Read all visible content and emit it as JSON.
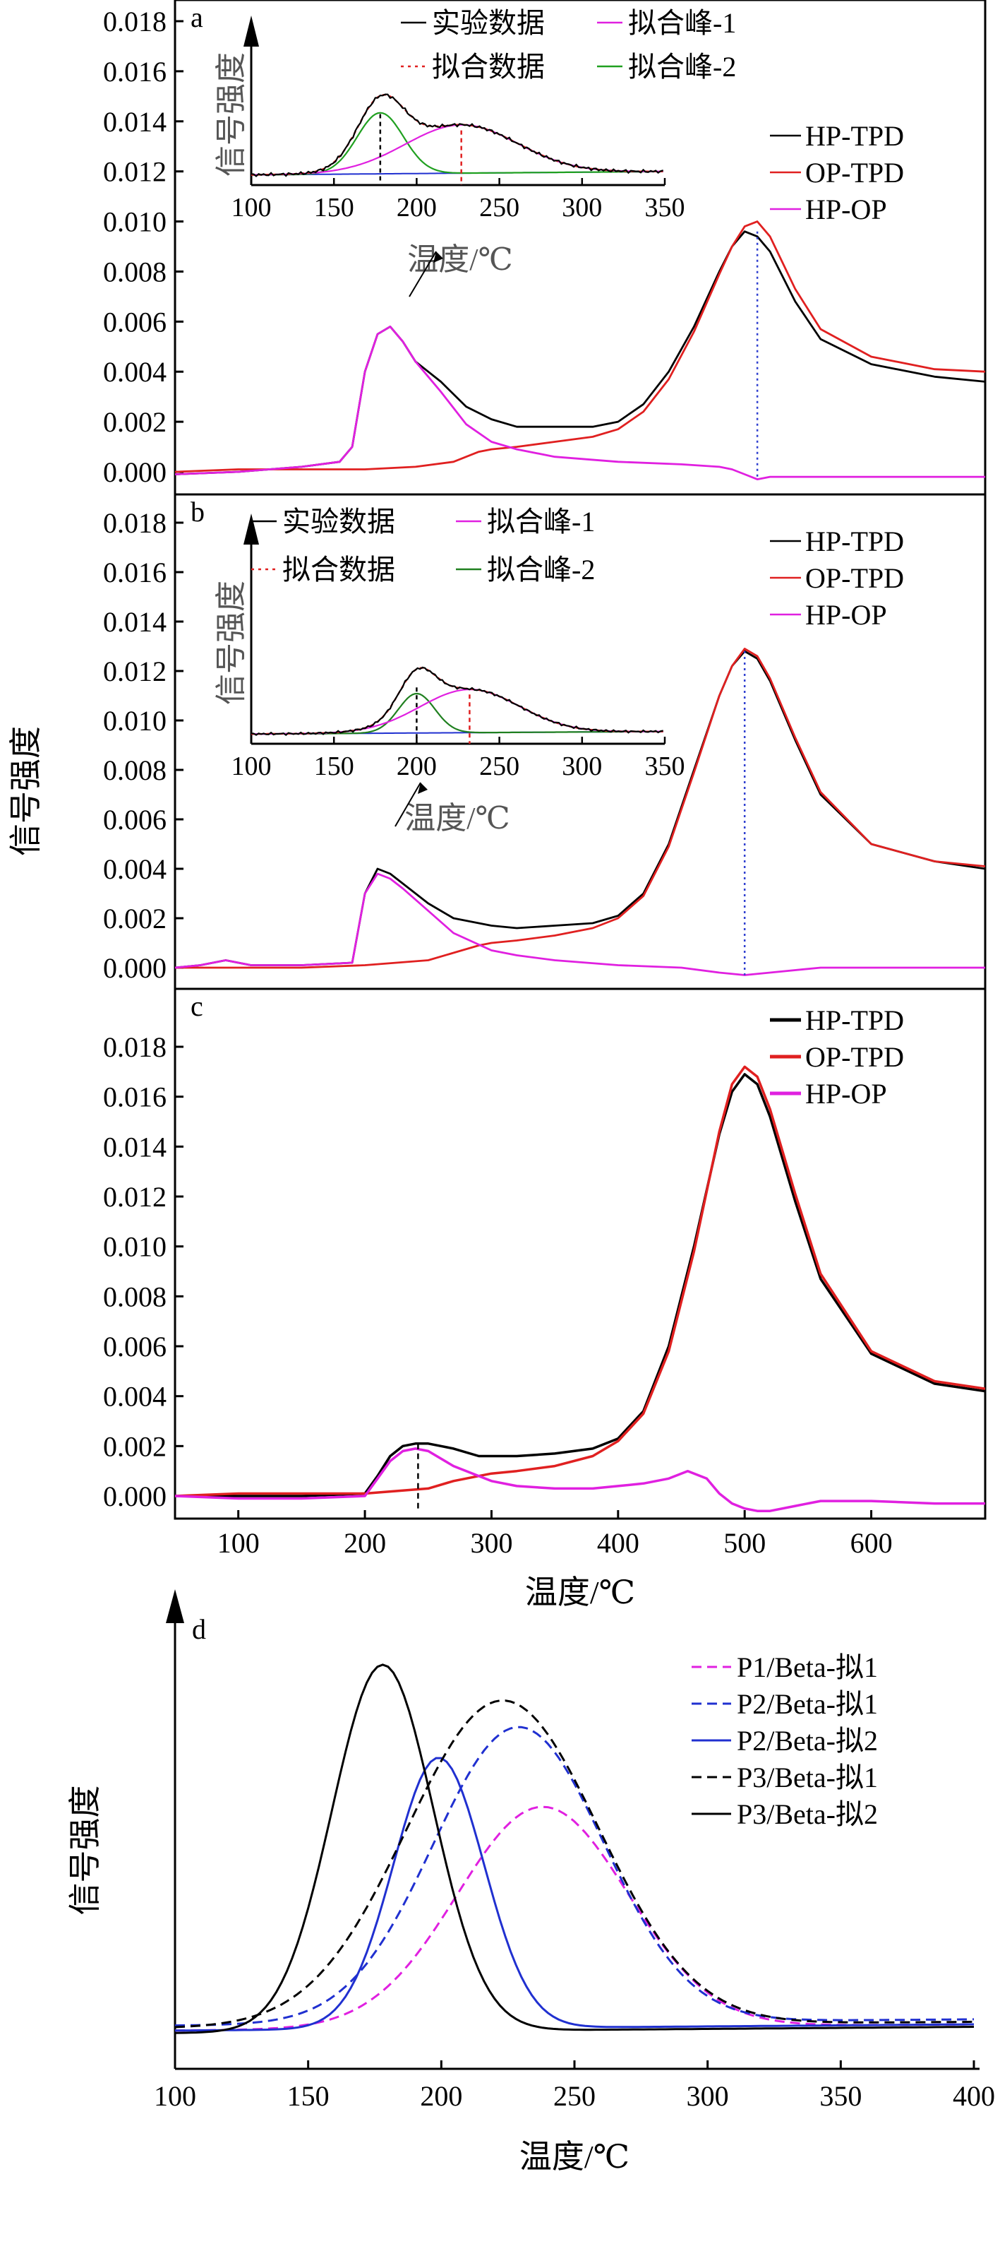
{
  "figure": {
    "ylabel": "信号强度",
    "xlabel": "温度/℃"
  },
  "chart_data": [
    {
      "panel": "a",
      "type": "line",
      "xlim": [
        50,
        690
      ],
      "ylim": [
        -0.001,
        0.018
      ],
      "yticks": [
        "0.018",
        "0.016",
        "0.014",
        "0.012",
        "0.010",
        "0.008",
        "0.006",
        "0.004",
        "0.002",
        "0.000"
      ],
      "series": [
        {
          "name": "HP-TPD",
          "color": "#000000",
          "x": [
            50,
            100,
            150,
            180,
            190,
            200,
            210,
            220,
            230,
            240,
            250,
            260,
            280,
            300,
            320,
            350,
            380,
            400,
            420,
            440,
            460,
            480,
            490,
            500,
            510,
            520,
            540,
            560,
            600,
            650,
            690
          ],
          "y": [
            -0.0001,
            0.0,
            0.0002,
            0.0004,
            0.001,
            0.004,
            0.0055,
            0.0058,
            0.0052,
            0.0044,
            0.004,
            0.0036,
            0.0026,
            0.0021,
            0.0018,
            0.0018,
            0.0018,
            0.002,
            0.0027,
            0.004,
            0.0058,
            0.008,
            0.009,
            0.0096,
            0.0094,
            0.0088,
            0.0068,
            0.0053,
            0.0043,
            0.0038,
            0.0036
          ]
        },
        {
          "name": "OP-TPD",
          "color": "#e02020",
          "x": [
            50,
            100,
            150,
            200,
            240,
            270,
            290,
            300,
            320,
            350,
            380,
            400,
            420,
            440,
            460,
            480,
            490,
            500,
            510,
            520,
            540,
            560,
            600,
            650,
            690
          ],
          "y": [
            0.0,
            0.0001,
            0.0001,
            0.0001,
            0.0002,
            0.0004,
            0.0008,
            0.0009,
            0.001,
            0.0012,
            0.0014,
            0.0017,
            0.0024,
            0.0037,
            0.0056,
            0.0079,
            0.009,
            0.0098,
            0.01,
            0.0094,
            0.0073,
            0.0057,
            0.0046,
            0.0041,
            0.004
          ]
        },
        {
          "name": "HP-OP",
          "color": "#e020e0",
          "x": [
            50,
            100,
            150,
            180,
            190,
            200,
            210,
            220,
            230,
            240,
            250,
            260,
            280,
            300,
            320,
            350,
            400,
            450,
            480,
            490,
            500,
            510,
            520,
            560,
            600,
            650,
            690
          ],
          "y": [
            -0.0001,
            0.0,
            0.0002,
            0.0004,
            0.001,
            0.004,
            0.0055,
            0.0058,
            0.0052,
            0.0044,
            0.0038,
            0.0032,
            0.0019,
            0.0012,
            0.0009,
            0.0006,
            0.0004,
            0.0003,
            0.0002,
            0.0001,
            -0.0001,
            -0.0003,
            -0.0002,
            -0.0002,
            -0.0002,
            -0.0002,
            -0.0002
          ]
        }
      ],
      "marker_x": 510,
      "inset": {
        "xlim": [
          100,
          350
        ],
        "xticks": [
          "100",
          "150",
          "200",
          "250",
          "300",
          "350"
        ],
        "ylabel": "信号强度",
        "xlabel": "温度/℃",
        "legend": [
          {
            "label": "实验数据",
            "color": "#000000",
            "dash": "solid"
          },
          {
            "label": "拟合峰-1",
            "color": "#e020e0",
            "dash": "solid"
          },
          {
            "label": "拟合数据",
            "color": "#e02020",
            "dash": "dotted"
          },
          {
            "label": "拟合峰-2",
            "color": "#20a020",
            "dash": "solid"
          }
        ],
        "peak1_center": 227,
        "peak2_center": 178
      }
    },
    {
      "panel": "b",
      "type": "line",
      "xlim": [
        50,
        690
      ],
      "ylim": [
        -0.001,
        0.018
      ],
      "yticks": [
        "0.018",
        "0.016",
        "0.014",
        "0.012",
        "0.010",
        "0.008",
        "0.006",
        "0.004",
        "0.002",
        "0.000"
      ],
      "series": [
        {
          "name": "HP-TPD",
          "color": "#000000",
          "x": [
            50,
            70,
            90,
            110,
            150,
            190,
            200,
            210,
            220,
            230,
            250,
            270,
            300,
            320,
            350,
            380,
            400,
            420,
            440,
            460,
            480,
            490,
            500,
            510,
            520,
            540,
            560,
            600,
            650,
            690
          ],
          "y": [
            0.0,
            0.0001,
            0.0003,
            0.0001,
            0.0001,
            0.0002,
            0.003,
            0.004,
            0.0038,
            0.0034,
            0.0026,
            0.002,
            0.0017,
            0.0016,
            0.0017,
            0.0018,
            0.0021,
            0.003,
            0.005,
            0.008,
            0.011,
            0.0122,
            0.0128,
            0.0125,
            0.0116,
            0.0092,
            0.007,
            0.005,
            0.0043,
            0.004
          ]
        },
        {
          "name": "OP-TPD",
          "color": "#e02020",
          "x": [
            50,
            150,
            200,
            250,
            270,
            290,
            300,
            320,
            350,
            380,
            400,
            420,
            440,
            460,
            480,
            490,
            500,
            510,
            520,
            540,
            560,
            600,
            650,
            690
          ],
          "y": [
            0.0,
            0.0,
            0.0001,
            0.0003,
            0.0006,
            0.0009,
            0.001,
            0.0011,
            0.0013,
            0.0016,
            0.002,
            0.0029,
            0.0049,
            0.0079,
            0.011,
            0.0122,
            0.0129,
            0.0126,
            0.0117,
            0.0093,
            0.0071,
            0.005,
            0.0043,
            0.0041
          ]
        },
        {
          "name": "HP-OP",
          "color": "#e020e0",
          "x": [
            50,
            70,
            90,
            110,
            150,
            190,
            200,
            210,
            220,
            230,
            250,
            270,
            300,
            320,
            350,
            400,
            450,
            480,
            500,
            520,
            560,
            600,
            650,
            690
          ],
          "y": [
            0.0,
            0.0001,
            0.0003,
            0.0001,
            0.0001,
            0.0002,
            0.003,
            0.0038,
            0.0036,
            0.0032,
            0.0023,
            0.0014,
            0.0007,
            0.0005,
            0.0003,
            0.0001,
            0.0,
            -0.0002,
            -0.0003,
            -0.0002,
            0.0,
            0.0,
            0.0,
            0.0
          ]
        }
      ],
      "marker_x": 500,
      "inset": {
        "xlim": [
          100,
          350
        ],
        "xticks": [
          "100",
          "150",
          "200",
          "250",
          "300",
          "350"
        ],
        "ylabel": "信号强度",
        "xlabel": "温度/℃",
        "legend": [
          {
            "label": "实验数据",
            "color": "#000000",
            "dash": "solid"
          },
          {
            "label": "拟合峰-1",
            "color": "#e020e0",
            "dash": "solid"
          },
          {
            "label": "拟合数据",
            "color": "#e02020",
            "dash": "dotted"
          },
          {
            "label": "拟合峰-2",
            "color": "#208020",
            "dash": "solid"
          }
        ],
        "peak1_center": 232,
        "peak2_center": 200
      }
    },
    {
      "panel": "c",
      "type": "line",
      "xlim": [
        50,
        690
      ],
      "ylim": [
        -0.001,
        0.018
      ],
      "yticks": [
        "0.018",
        "0.016",
        "0.014",
        "0.012",
        "0.010",
        "0.008",
        "0.006",
        "0.004",
        "0.002",
        "0.000"
      ],
      "xticks": [
        "100",
        "200",
        "300",
        "400",
        "500",
        "600"
      ],
      "xlabel": "温度/℃",
      "series": [
        {
          "name": "HP-TPD",
          "color": "#000000",
          "x": [
            50,
            100,
            150,
            200,
            210,
            220,
            230,
            240,
            250,
            260,
            270,
            290,
            300,
            320,
            350,
            380,
            400,
            420,
            440,
            460,
            480,
            490,
            500,
            510,
            520,
            540,
            560,
            600,
            650,
            690
          ],
          "y": [
            0.0,
            0.0,
            0.0,
            0.0001,
            0.0008,
            0.0016,
            0.002,
            0.0021,
            0.0021,
            0.002,
            0.0019,
            0.0016,
            0.0016,
            0.0016,
            0.0017,
            0.0019,
            0.0023,
            0.0034,
            0.006,
            0.01,
            0.0145,
            0.0162,
            0.0169,
            0.0165,
            0.0152,
            0.0118,
            0.0087,
            0.0057,
            0.0045,
            0.0042
          ]
        },
        {
          "name": "OP-TPD",
          "color": "#e02020",
          "x": [
            50,
            100,
            150,
            200,
            250,
            270,
            290,
            300,
            320,
            350,
            380,
            400,
            420,
            440,
            460,
            480,
            490,
            500,
            510,
            520,
            540,
            560,
            600,
            650,
            690
          ],
          "y": [
            0.0,
            0.0001,
            0.0001,
            0.0001,
            0.0003,
            0.0006,
            0.0008,
            0.0009,
            0.001,
            0.0012,
            0.0016,
            0.0022,
            0.0033,
            0.0058,
            0.0098,
            0.0146,
            0.0165,
            0.0172,
            0.0168,
            0.0155,
            0.0121,
            0.0089,
            0.0058,
            0.0046,
            0.0043
          ]
        },
        {
          "name": "HP-OP",
          "color": "#e020e0",
          "x": [
            50,
            100,
            150,
            200,
            210,
            220,
            230,
            240,
            250,
            260,
            270,
            290,
            300,
            320,
            350,
            380,
            400,
            420,
            440,
            455,
            470,
            480,
            490,
            500,
            510,
            520,
            540,
            560,
            600,
            650,
            690
          ],
          "y": [
            0.0,
            -0.0001,
            -0.0001,
            0.0,
            0.0007,
            0.0014,
            0.0018,
            0.0019,
            0.0018,
            0.0015,
            0.0012,
            0.0008,
            0.0006,
            0.0004,
            0.0003,
            0.0003,
            0.0004,
            0.0005,
            0.0007,
            0.001,
            0.0007,
            0.0001,
            -0.0003,
            -0.0005,
            -0.0006,
            -0.0006,
            -0.0004,
            -0.0002,
            -0.0002,
            -0.0003,
            -0.0003
          ]
        }
      ],
      "marker_x": 242
    },
    {
      "panel": "d",
      "type": "line",
      "xlim": [
        100,
        400
      ],
      "xticks": [
        "100",
        "150",
        "200",
        "250",
        "300",
        "350",
        "400"
      ],
      "ylabel": "信号强度",
      "xlabel": "温度/℃",
      "series": [
        {
          "name": "P1/Beta-拟1",
          "color": "#e020e0",
          "dash": "dashed",
          "center": 238,
          "sigma": 32,
          "amp": 0.53,
          "base": 0.04
        },
        {
          "name": "P2/Beta-拟1",
          "color": "#2030d0",
          "dash": "dashed",
          "center": 229,
          "sigma": 32,
          "amp": 0.71,
          "base": 0.06
        },
        {
          "name": "P2/Beta-拟2",
          "color": "#2030d0",
          "dash": "solid",
          "center": 199,
          "sigma": 17,
          "amp": 0.65,
          "base": 0.04
        },
        {
          "name": "P3/Beta-拟1",
          "color": "#000000",
          "dash": "dashed",
          "center": 223,
          "sigma": 36,
          "amp": 0.78,
          "base": 0.05
        },
        {
          "name": "P3/Beta-拟2",
          "color": "#000000",
          "dash": "solid",
          "center": 178,
          "sigma": 19,
          "amp": 0.88,
          "base": 0.03
        }
      ]
    }
  ]
}
